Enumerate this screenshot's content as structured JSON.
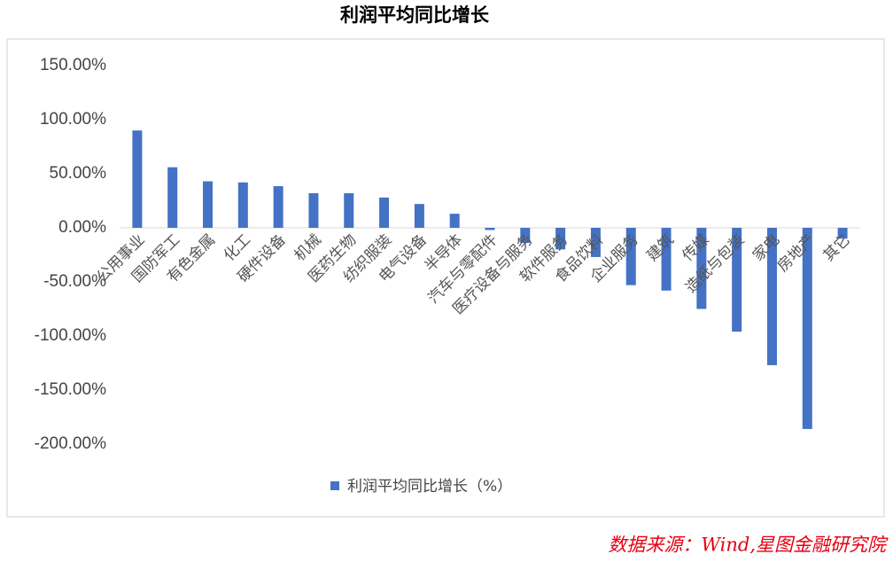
{
  "chart_data": {
    "type": "bar",
    "title": "利润平均同比增长",
    "categories": [
      "公用事业",
      "国防军工",
      "有色金属",
      "化工",
      "硬件设备",
      "机械",
      "医药生物",
      "纺织服装",
      "电气设备",
      "半导体",
      "汽车与零配件",
      "医疗设备与服务",
      "软件服务",
      "食品饮料",
      "企业服务",
      "建筑",
      "传媒",
      "造纸与包装",
      "家电",
      "房地产",
      "其它"
    ],
    "series": [
      {
        "name": "利润平均同比增长（%）",
        "color": "#4472c4",
        "values": [
          90,
          56,
          43,
          42,
          38.5,
          32,
          32,
          28,
          22,
          13,
          -2,
          -14,
          -20,
          -27,
          -53,
          -58,
          -75,
          -96,
          -127,
          -186,
          -10
        ]
      }
    ],
    "ylim": [
      -200,
      150
    ],
    "yticks": [
      {
        "value": -200,
        "label": "-200.00%"
      },
      {
        "value": -150,
        "label": "-150.00%"
      },
      {
        "value": -100,
        "label": "-100.00%"
      },
      {
        "value": -50,
        "label": "-50.00%"
      },
      {
        "value": 0,
        "label": "0.00%"
      },
      {
        "value": 50,
        "label": "50.00%"
      },
      {
        "value": 100,
        "label": "100.00%"
      },
      {
        "value": 150,
        "label": "150.00%"
      }
    ],
    "grid": false,
    "source": "数据来源：Wind,星图金融研究院"
  }
}
